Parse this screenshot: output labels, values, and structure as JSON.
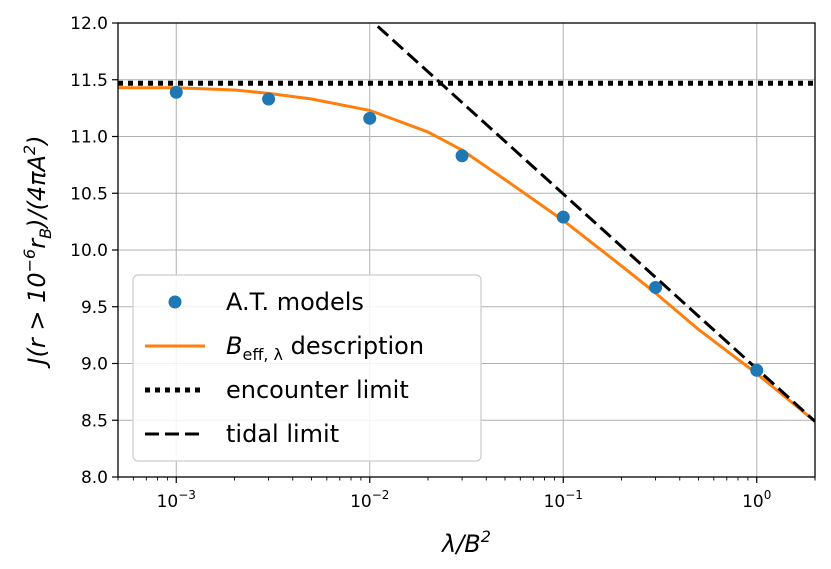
{
  "chart_data": {
    "type": "line",
    "xscale": "log",
    "xlim": [
      0.0005,
      2
    ],
    "ylim": [
      8.0,
      12.0
    ],
    "grid": true,
    "legend_position": "lower-left",
    "xlabel_parts": [
      "λ/B",
      "2"
    ],
    "ylabel_parts": [
      "J(r > 10",
      "−6",
      "r",
      "B",
      ")/(4πA",
      "2",
      ")"
    ],
    "xticks": [
      {
        "value": 0.001,
        "base": "10",
        "exp": "−3"
      },
      {
        "value": 0.01,
        "base": "10",
        "exp": "−2"
      },
      {
        "value": 0.1,
        "base": "10",
        "exp": "−1"
      },
      {
        "value": 1,
        "base": "10",
        "exp": "0"
      }
    ],
    "yticks": [
      8.0,
      8.5,
      9.0,
      9.5,
      10.0,
      10.5,
      11.0,
      11.5,
      12.0
    ],
    "ytick_labels": [
      "8.0",
      "8.5",
      "9.0",
      "9.5",
      "10.0",
      "10.5",
      "11.0",
      "11.5",
      "12.0"
    ],
    "series": [
      {
        "name": "A.T. models",
        "kind": "scatter",
        "color": "#1f77b4",
        "x": [
          0.001,
          0.003,
          0.01,
          0.03,
          0.1,
          0.3,
          1.0
        ],
        "y": [
          11.39,
          11.33,
          11.16,
          10.83,
          10.29,
          9.67,
          8.94
        ]
      },
      {
        "name_parts": [
          "B",
          "eff, λ",
          " description"
        ],
        "kind": "line",
        "style": "solid",
        "color": "#ff7f0e",
        "x": [
          0.0005,
          0.001,
          0.002,
          0.003,
          0.005,
          0.01,
          0.02,
          0.03,
          0.05,
          0.1,
          0.2,
          0.3,
          0.5,
          1.0,
          2.0
        ],
        "y": [
          11.43,
          11.43,
          11.41,
          11.38,
          11.33,
          11.23,
          11.04,
          10.88,
          10.62,
          10.26,
          9.86,
          9.62,
          9.3,
          8.91,
          8.49
        ]
      },
      {
        "name": "encounter limit",
        "kind": "line",
        "style": "dotted",
        "color": "#000000",
        "x": [
          0.0005,
          2.0
        ],
        "y": [
          11.47,
          11.47
        ]
      },
      {
        "name": "tidal limit",
        "kind": "line",
        "style": "dashed",
        "color": "#000000",
        "x": [
          0.011,
          2.0
        ],
        "y": [
          11.97,
          8.49
        ]
      }
    ]
  }
}
